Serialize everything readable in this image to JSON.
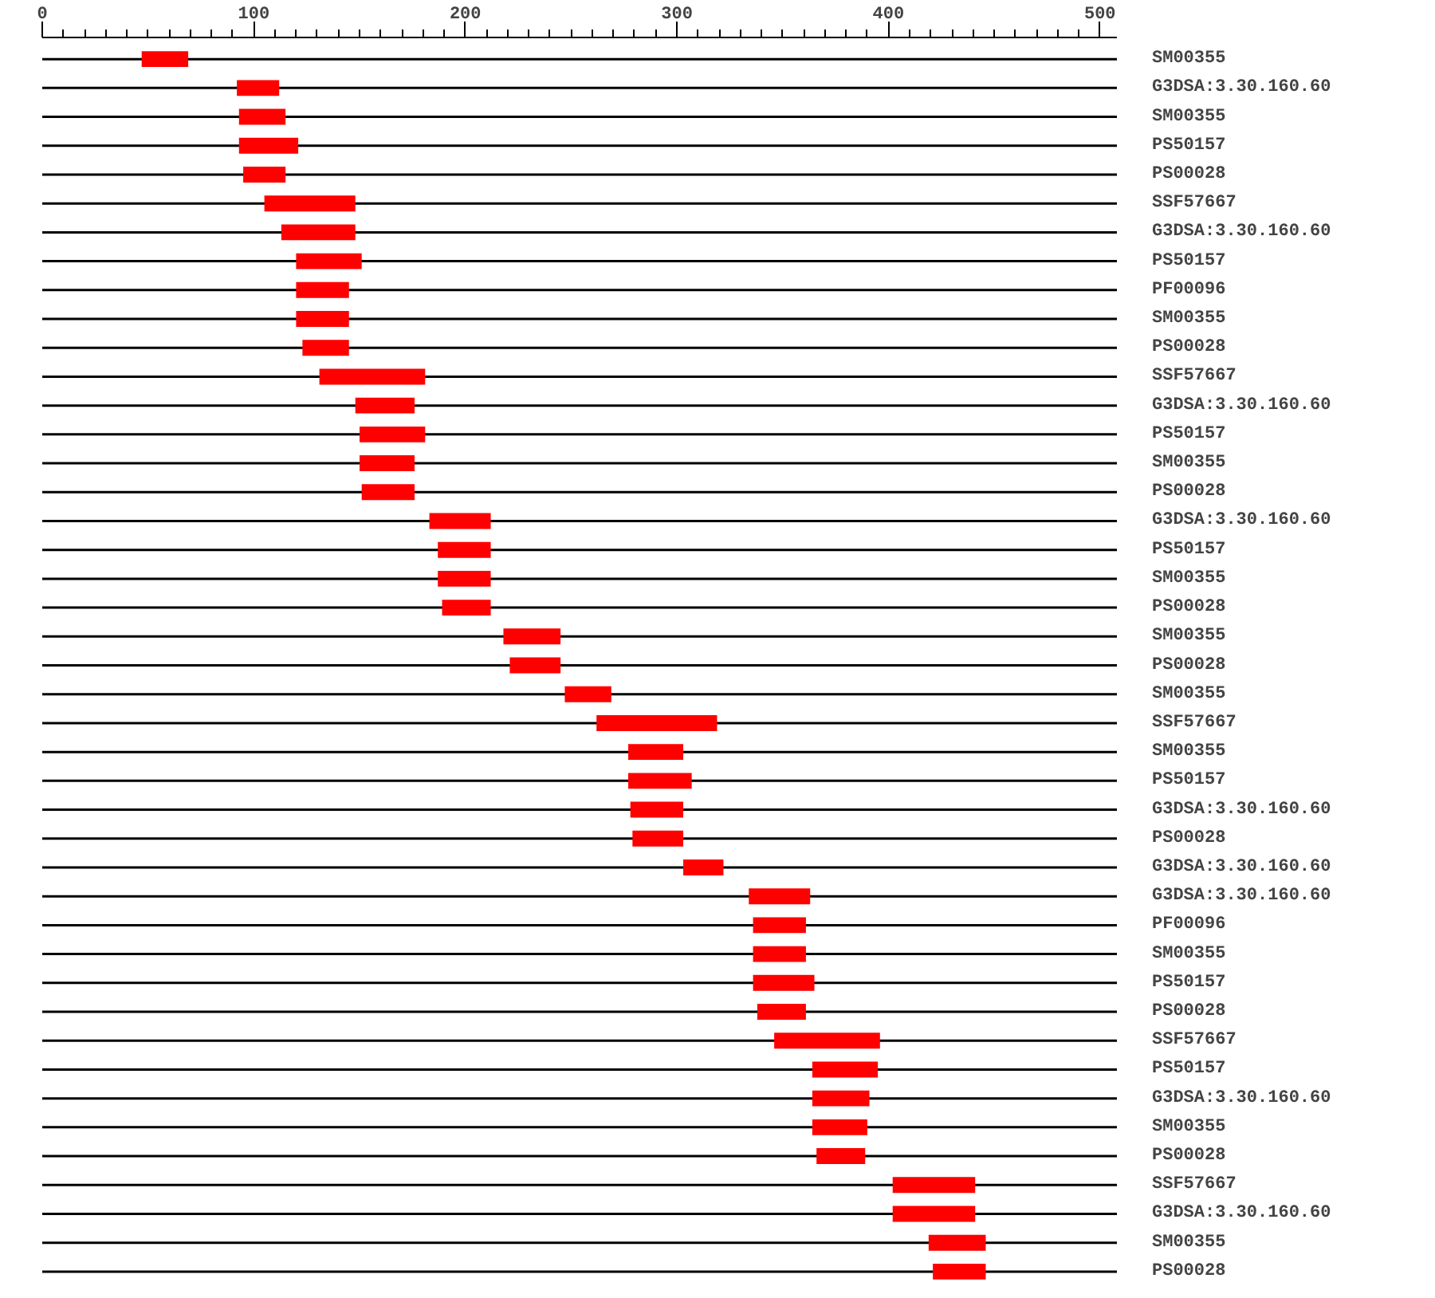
{
  "chart_data": {
    "type": "bar",
    "orientation": "horizontal",
    "color": "#ff0000",
    "grid": "y",
    "xlim": [
      0,
      508
    ],
    "xticks": [
      0,
      {
        "value": 10,
        "label": null
      },
      {
        "value": 20,
        "label": null
      },
      {
        "value": 30,
        "label": null
      },
      {
        "value": 40,
        "label": null
      },
      {
        "value": 50,
        "label": null
      },
      {
        "value": 60,
        "label": null
      },
      {
        "value": 70,
        "label": null
      },
      {
        "value": 80,
        "label": null
      },
      {
        "value": 90,
        "label": null
      },
      100,
      {
        "value": 110,
        "label": null
      },
      {
        "value": 120,
        "label": null
      },
      {
        "value": 130,
        "label": null
      },
      {
        "value": 140,
        "label": null
      },
      {
        "value": 150,
        "label": null
      },
      {
        "value": 160,
        "label": null
      },
      {
        "value": 170,
        "label": null
      },
      {
        "value": 180,
        "label": null
      },
      {
        "value": 190,
        "label": null
      },
      200,
      {
        "value": 210,
        "label": null
      },
      {
        "value": 220,
        "label": null
      },
      {
        "value": 230,
        "label": null
      },
      {
        "value": 240,
        "label": null
      },
      {
        "value": 250,
        "label": null
      },
      {
        "value": 260,
        "label": null
      },
      {
        "value": 270,
        "label": null
      },
      {
        "value": 280,
        "label": null
      },
      {
        "value": 290,
        "label": null
      },
      300,
      {
        "value": 310,
        "label": null
      },
      {
        "value": 320,
        "label": null
      },
      {
        "value": 330,
        "label": null
      },
      {
        "value": 340,
        "label": null
      },
      {
        "value": 350,
        "label": null
      },
      {
        "value": 360,
        "label": null
      },
      {
        "value": 370,
        "label": null
      },
      {
        "value": 380,
        "label": null
      },
      {
        "value": 390,
        "label": null
      },
      400,
      {
        "value": 410,
        "label": null
      },
      {
        "value": 420,
        "label": null
      },
      {
        "value": 430,
        "label": null
      },
      {
        "value": 440,
        "label": null
      },
      {
        "value": 450,
        "label": null
      },
      {
        "value": 460,
        "label": null
      },
      {
        "value": 470,
        "label": null
      },
      {
        "value": 480,
        "label": null
      },
      {
        "value": 490,
        "label": null
      },
      500
    ],
    "categories": [
      "SM00355",
      "G3DSA:3.30.160.60",
      "SM00355",
      "PS50157",
      "PS00028",
      "SSF57667",
      "G3DSA:3.30.160.60",
      "PS50157",
      "PF00096",
      "SM00355",
      "PS00028",
      "SSF57667",
      "G3DSA:3.30.160.60",
      "PS50157",
      "SM00355",
      "PS00028",
      "G3DSA:3.30.160.60",
      "PS50157",
      "SM00355",
      "PS00028",
      "SM00355",
      "PS00028",
      "SM00355",
      "SSF57667",
      "SM00355",
      "PS50157",
      "G3DSA:3.30.160.60",
      "PS00028",
      "G3DSA:3.30.160.60",
      "G3DSA:3.30.160.60",
      "PF00096",
      "SM00355",
      "PS50157",
      "PS00028",
      "SSF57667",
      "PS50157",
      "G3DSA:3.30.160.60",
      "SM00355",
      "PS00028",
      "SSF57667",
      "G3DSA:3.30.160.60",
      "SM00355",
      "PS00028"
    ],
    "base": [
      47,
      92,
      93,
      93,
      95,
      105,
      113,
      120,
      120,
      120,
      123,
      131,
      148,
      150,
      150,
      151,
      183,
      187,
      187,
      189,
      218,
      221,
      247,
      262,
      277,
      277,
      278,
      279,
      303,
      334,
      336,
      336,
      336,
      338,
      346,
      364,
      364,
      364,
      366,
      402,
      402,
      419,
      421
    ],
    "values": [
      22,
      20,
      22,
      28,
      20,
      43,
      35,
      31,
      25,
      25,
      22,
      50,
      28,
      31,
      26,
      25,
      29,
      25,
      25,
      23,
      27,
      24,
      22,
      57,
      26,
      30,
      25,
      24,
      19,
      29,
      25,
      25,
      29,
      23,
      50,
      31,
      27,
      26,
      23,
      39,
      39,
      27,
      25
    ]
  }
}
